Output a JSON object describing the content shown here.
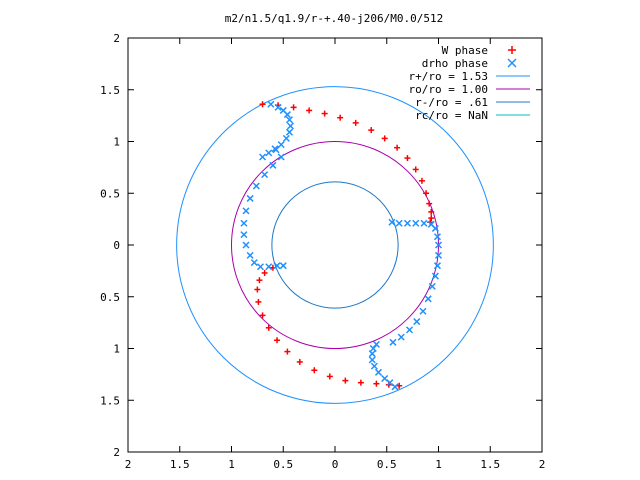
{
  "chart_data": {
    "type": "scatter",
    "title": "m2/n1.5/q1.9/r-+.40-j206/M0.0/512",
    "xlabel": "",
    "ylabel": "",
    "xlim": [
      -2,
      2
    ],
    "ylim": [
      -2,
      2
    ],
    "grid": false,
    "legend_position": "top-right",
    "x_ticks": [
      "2",
      "1.5",
      "1",
      "0.5",
      "0",
      "0.5",
      "1",
      "1.5",
      "2"
    ],
    "y_ticks": [
      "2",
      "1.5",
      "1",
      "0.5",
      "0",
      "0.5",
      "1",
      "1.5",
      "2"
    ],
    "series": [
      {
        "name": "W phase",
        "marker": "+",
        "color": "#ff0000",
        "points": [
          [
            -0.7,
            1.36
          ],
          [
            -0.55,
            1.35
          ],
          [
            -0.4,
            1.33
          ],
          [
            -0.25,
            1.3
          ],
          [
            -0.1,
            1.27
          ],
          [
            0.05,
            1.23
          ],
          [
            0.2,
            1.18
          ],
          [
            0.35,
            1.11
          ],
          [
            0.48,
            1.03
          ],
          [
            0.6,
            0.94
          ],
          [
            0.7,
            0.84
          ],
          [
            0.78,
            0.73
          ],
          [
            0.84,
            0.62
          ],
          [
            0.88,
            0.5
          ],
          [
            0.91,
            0.4
          ],
          [
            0.93,
            0.32
          ],
          [
            0.93,
            0.26
          ],
          [
            0.92,
            0.22
          ],
          [
            -0.6,
            -0.22
          ],
          [
            -0.68,
            -0.27
          ],
          [
            -0.73,
            -0.34
          ],
          [
            -0.75,
            -0.43
          ],
          [
            -0.74,
            -0.55
          ],
          [
            -0.7,
            -0.68
          ],
          [
            -0.64,
            -0.8
          ],
          [
            -0.56,
            -0.92
          ],
          [
            -0.46,
            -1.03
          ],
          [
            -0.34,
            -1.13
          ],
          [
            -0.2,
            -1.21
          ],
          [
            -0.05,
            -1.27
          ],
          [
            0.1,
            -1.31
          ],
          [
            0.25,
            -1.33
          ],
          [
            0.4,
            -1.34
          ],
          [
            0.52,
            -1.35
          ],
          [
            0.62,
            -1.36
          ]
        ]
      },
      {
        "name": "drho phase",
        "marker": "x",
        "color": "#1e90ff",
        "points": [
          [
            -0.62,
            1.36
          ],
          [
            -0.55,
            1.33
          ],
          [
            -0.5,
            1.3
          ],
          [
            -0.46,
            1.26
          ],
          [
            -0.44,
            1.21
          ],
          [
            -0.43,
            1.15
          ],
          [
            -0.44,
            1.09
          ],
          [
            -0.47,
            1.03
          ],
          [
            -0.52,
            0.97
          ],
          [
            -0.57,
            0.92
          ],
          [
            0.55,
            0.22
          ],
          [
            0.62,
            0.21
          ],
          [
            0.7,
            0.21
          ],
          [
            0.78,
            0.21
          ],
          [
            0.86,
            0.21
          ],
          [
            0.93,
            0.2
          ],
          [
            0.97,
            0.16
          ],
          [
            0.99,
            0.08
          ],
          [
            1.0,
            0.0
          ],
          [
            1.0,
            -0.1
          ],
          [
            0.99,
            -0.2
          ],
          [
            0.97,
            -0.3
          ],
          [
            0.94,
            -0.4
          ],
          [
            0.9,
            -0.52
          ],
          [
            0.85,
            -0.64
          ],
          [
            0.79,
            -0.74
          ],
          [
            0.72,
            -0.82
          ],
          [
            0.64,
            -0.89
          ],
          [
            0.56,
            -0.94
          ],
          [
            0.4,
            -0.96
          ],
          [
            0.37,
            -1.0
          ],
          [
            0.36,
            -1.05
          ],
          [
            0.36,
            -1.11
          ],
          [
            0.38,
            -1.17
          ],
          [
            0.42,
            -1.23
          ],
          [
            0.48,
            -1.29
          ],
          [
            0.53,
            -1.33
          ],
          [
            0.58,
            -1.37
          ],
          [
            -0.52,
            0.85
          ],
          [
            -0.6,
            0.77
          ],
          [
            -0.68,
            0.68
          ],
          [
            -0.76,
            0.57
          ],
          [
            -0.82,
            0.45
          ],
          [
            -0.86,
            0.33
          ],
          [
            -0.88,
            0.21
          ],
          [
            -0.88,
            0.1
          ],
          [
            -0.86,
            0.0
          ],
          [
            -0.82,
            -0.1
          ],
          [
            -0.78,
            -0.17
          ],
          [
            -0.72,
            -0.21
          ],
          [
            -0.64,
            -0.21
          ],
          [
            -0.56,
            -0.2
          ],
          [
            -0.5,
            -0.2
          ],
          [
            -0.58,
            0.93
          ],
          [
            -0.64,
            0.89
          ],
          [
            -0.7,
            0.85
          ]
        ]
      }
    ],
    "circles": [
      {
        "name": "r+/ro = 1.53",
        "radius": 1.53,
        "color": "#1e90ff"
      },
      {
        "name": "ro/ro = 1.00",
        "radius": 1.0,
        "color": "#aa00aa"
      },
      {
        "name": "r-/ro = .61",
        "radius": 0.61,
        "color": "#1e78c8"
      },
      {
        "name": "rc/ro = NaN",
        "radius": null,
        "color": "#00c0c0"
      }
    ]
  }
}
